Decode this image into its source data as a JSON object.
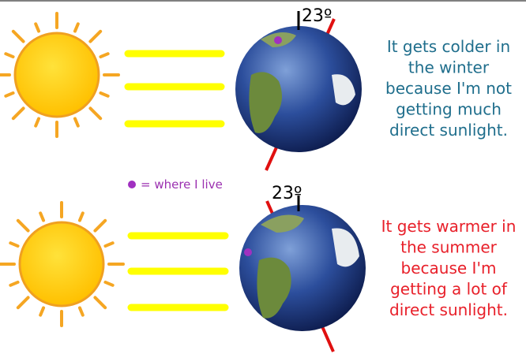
{
  "winter": {
    "angle_label": "23º",
    "caption": [
      "It gets colder in",
      "the winter",
      "because I'm not",
      "getting much",
      "direct sunlight."
    ]
  },
  "summer": {
    "angle_label": "23º",
    "caption": [
      "It gets warmer in",
      "the summer",
      "because I'm",
      "getting a lot of",
      "direct sunlight."
    ]
  },
  "legend": {
    "label": "= where I live"
  }
}
